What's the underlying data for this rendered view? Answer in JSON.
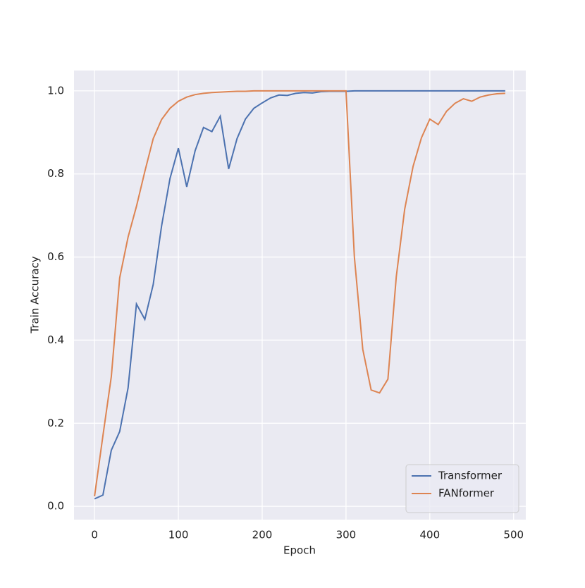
{
  "chart_data": {
    "type": "line",
    "xlabel": "Epoch",
    "ylabel": "Train Accuracy",
    "x": [
      0,
      10,
      20,
      30,
      40,
      50,
      60,
      70,
      80,
      90,
      100,
      110,
      120,
      130,
      140,
      150,
      160,
      170,
      180,
      190,
      200,
      210,
      220,
      230,
      240,
      250,
      260,
      270,
      280,
      290,
      300,
      310,
      320,
      330,
      340,
      350,
      360,
      370,
      380,
      390,
      400,
      410,
      420,
      430,
      440,
      450,
      460,
      470,
      480,
      490
    ],
    "series": [
      {
        "name": "Transformer",
        "color": "#4c72b0",
        "values": [
          0.018,
          0.027,
          0.135,
          0.18,
          0.285,
          0.487,
          0.45,
          0.534,
          0.675,
          0.789,
          0.862,
          0.769,
          0.856,
          0.912,
          0.902,
          0.939,
          0.812,
          0.885,
          0.932,
          0.958,
          0.971,
          0.983,
          0.99,
          0.989,
          0.994,
          0.996,
          0.995,
          0.998,
          0.999,
          0.999,
          0.999,
          1.0,
          1.0,
          1.0,
          1.0,
          1.0,
          1.0,
          1.0,
          1.0,
          1.0,
          1.0,
          1.0,
          1.0,
          1.0,
          1.0,
          1.0,
          1.0,
          1.0,
          1.0,
          1.0
        ]
      },
      {
        "name": "FANformer",
        "color": "#dd8452",
        "values": [
          0.024,
          0.17,
          0.312,
          0.55,
          0.648,
          0.722,
          0.806,
          0.885,
          0.931,
          0.958,
          0.975,
          0.985,
          0.991,
          0.994,
          0.996,
          0.997,
          0.998,
          0.999,
          0.999,
          1.0,
          1.0,
          1.0,
          1.0,
          1.0,
          1.0,
          1.0,
          1.0,
          1.0,
          1.0,
          1.0,
          1.0,
          0.6,
          0.378,
          0.28,
          0.273,
          0.306,
          0.553,
          0.715,
          0.818,
          0.887,
          0.932,
          0.919,
          0.951,
          0.97,
          0.981,
          0.975,
          0.985,
          0.99,
          0.993,
          0.994
        ]
      }
    ],
    "xlim": [
      -24.5,
      514.5
    ],
    "xticks": [
      0,
      100,
      200,
      300,
      400,
      500
    ],
    "ylim": [
      -0.032,
      1.049
    ],
    "yticks": [
      {
        "value": 0,
        "label": "0.0"
      },
      {
        "value": 0.2,
        "label": "0.2"
      },
      {
        "value": 0.4,
        "label": "0.4"
      },
      {
        "value": 0.6,
        "label": "0.6"
      },
      {
        "value": 0.8,
        "label": "0.8"
      },
      {
        "value": 1,
        "label": "1.0"
      }
    ],
    "grid": true,
    "legend": "lower right"
  }
}
